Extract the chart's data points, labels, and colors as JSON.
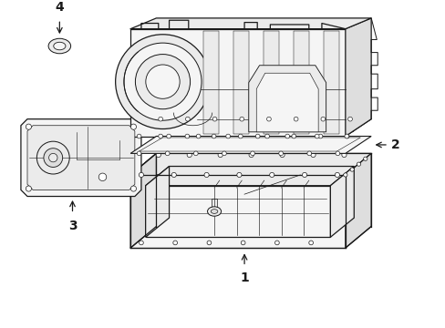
{
  "bg_color": "#ffffff",
  "line_color": "#1a1a1a",
  "fill_light": "#f5f5f5",
  "fill_mid": "#ebebeb",
  "fill_dark": "#dedede",
  "lw_main": 0.9,
  "lw_thin": 0.5,
  "label_fontsize": 10
}
